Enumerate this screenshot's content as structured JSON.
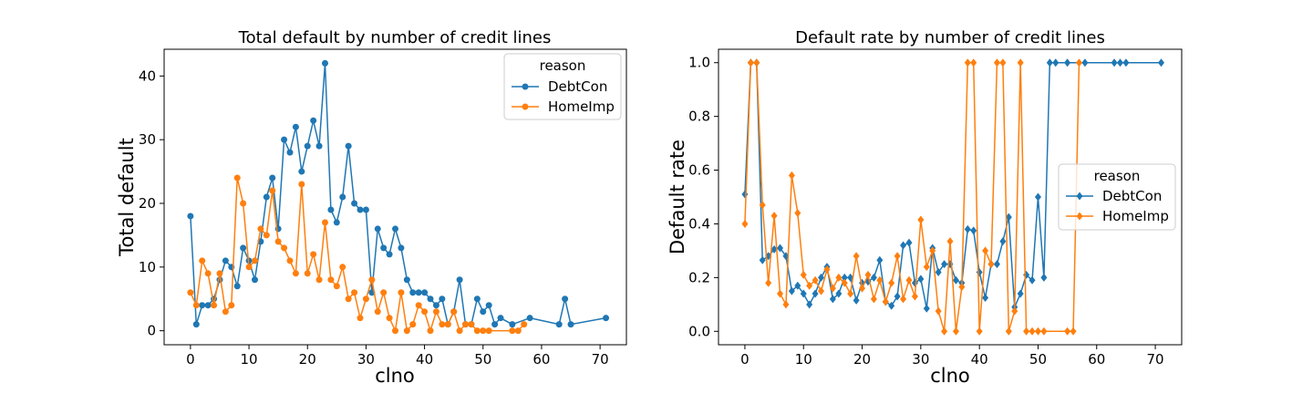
{
  "chart_data": [
    {
      "type": "line",
      "title": "Total default by number of credit lines",
      "xlabel": "clno",
      "ylabel": "Total default",
      "xlim": [
        -4.5,
        74.5
      ],
      "ylim": [
        -2.2,
        44.2
      ],
      "xticks": [
        0,
        10,
        20,
        30,
        40,
        50,
        60,
        70
      ],
      "yticks": [
        0,
        10,
        20,
        30,
        40
      ],
      "grid": false,
      "legend": {
        "title": "reason",
        "placement": "top-right"
      },
      "series": [
        {
          "name": "DebtCon",
          "color": "#1f77b4",
          "marker": "circle",
          "x": [
            0,
            1,
            2,
            3,
            4,
            5,
            6,
            7,
            8,
            9,
            10,
            11,
            12,
            13,
            14,
            15,
            16,
            17,
            18,
            19,
            20,
            21,
            22,
            23,
            24,
            25,
            26,
            27,
            28,
            29,
            30,
            31,
            32,
            33,
            34,
            35,
            36,
            37,
            38,
            39,
            40,
            41,
            42,
            43,
            44,
            45,
            46,
            47,
            48,
            49,
            50,
            51,
            52,
            53,
            55,
            58,
            63,
            64,
            65,
            71
          ],
          "y": [
            18,
            1,
            4,
            4,
            5,
            8,
            11,
            10,
            7,
            13,
            11,
            8,
            14,
            21,
            24,
            16,
            30,
            28,
            32,
            25,
            29,
            33,
            29,
            42,
            19,
            17,
            21,
            29,
            20,
            19,
            19,
            6,
            16,
            13,
            12,
            16,
            13,
            8,
            6,
            6,
            6,
            5,
            4,
            5,
            1,
            3,
            8,
            1,
            1,
            5,
            3,
            4,
            1,
            2,
            1,
            2,
            1,
            5,
            1,
            2
          ]
        },
        {
          "name": "HomeImp",
          "color": "#ff7f0e",
          "marker": "circle",
          "x": [
            0,
            1,
            2,
            3,
            4,
            5,
            6,
            7,
            8,
            9,
            10,
            11,
            12,
            13,
            14,
            15,
            16,
            17,
            18,
            19,
            20,
            21,
            22,
            23,
            24,
            25,
            26,
            27,
            28,
            29,
            30,
            31,
            32,
            33,
            34,
            35,
            36,
            37,
            38,
            39,
            40,
            41,
            42,
            43,
            44,
            45,
            46,
            47,
            48,
            49,
            50,
            51,
            55,
            56,
            57
          ],
          "y": [
            6,
            4,
            11,
            9,
            4,
            9,
            3,
            4,
            24,
            20,
            10,
            11,
            16,
            15,
            22,
            14,
            13,
            11,
            9,
            23,
            9,
            12,
            8,
            17,
            8,
            7,
            10,
            5,
            6,
            2,
            5,
            8,
            3,
            6,
            2,
            0,
            6,
            0,
            1,
            4,
            3,
            0,
            3,
            1,
            1,
            3,
            0,
            1,
            1,
            0,
            0,
            0,
            0,
            0,
            1
          ]
        }
      ]
    },
    {
      "type": "line",
      "title": "Default rate by number of credit lines",
      "xlabel": "clno",
      "ylabel": "Default rate",
      "xlim": [
        -4.5,
        74.5
      ],
      "ylim": [
        -0.05,
        1.05
      ],
      "xticks": [
        0,
        10,
        20,
        30,
        40,
        50,
        60,
        70
      ],
      "yticks": [
        0.0,
        0.2,
        0.4,
        0.6,
        0.8,
        1.0
      ],
      "grid": false,
      "legend": {
        "title": "reason",
        "placement": "center-right"
      },
      "series": [
        {
          "name": "DebtCon",
          "color": "#1f77b4",
          "marker": "diamond",
          "x": [
            0,
            1,
            2,
            3,
            4,
            5,
            6,
            7,
            8,
            9,
            10,
            11,
            12,
            13,
            14,
            15,
            16,
            17,
            18,
            19,
            20,
            21,
            22,
            23,
            24,
            25,
            26,
            27,
            28,
            29,
            30,
            31,
            32,
            33,
            34,
            35,
            36,
            37,
            38,
            39,
            40,
            41,
            42,
            43,
            44,
            45,
            46,
            47,
            48,
            49,
            50,
            51,
            52,
            53,
            55,
            58,
            63,
            64,
            65,
            71
          ],
          "y": [
            0.51,
            1.0,
            1.0,
            0.265,
            0.28,
            0.305,
            0.31,
            0.28,
            0.15,
            0.17,
            0.14,
            0.1,
            0.14,
            0.2,
            0.24,
            0.12,
            0.14,
            0.2,
            0.2,
            0.115,
            0.18,
            0.185,
            0.2,
            0.265,
            0.11,
            0.095,
            0.13,
            0.32,
            0.33,
            0.18,
            0.195,
            0.085,
            0.31,
            0.22,
            0.25,
            0.25,
            0.19,
            0.18,
            0.38,
            0.375,
            0.22,
            0.125,
            0.25,
            0.25,
            0.335,
            0.425,
            0.09,
            0.14,
            0.21,
            0.19,
            0.5,
            0.2,
            1.0,
            1.0,
            1.0,
            1.0,
            1.0,
            1.0,
            1.0,
            1.0
          ]
        },
        {
          "name": "HomeImp",
          "color": "#ff7f0e",
          "marker": "diamond",
          "x": [
            0,
            1,
            2,
            3,
            4,
            5,
            6,
            7,
            8,
            9,
            10,
            11,
            12,
            13,
            14,
            15,
            16,
            17,
            18,
            19,
            20,
            21,
            22,
            23,
            24,
            25,
            26,
            27,
            28,
            29,
            30,
            31,
            32,
            33,
            34,
            35,
            36,
            37,
            38,
            39,
            40,
            41,
            42,
            43,
            44,
            45,
            46,
            47,
            48,
            49,
            50,
            51,
            55,
            56,
            57
          ],
          "y": [
            0.4,
            1.0,
            1.0,
            0.47,
            0.18,
            0.43,
            0.14,
            0.1,
            0.58,
            0.44,
            0.21,
            0.17,
            0.19,
            0.15,
            0.23,
            0.16,
            0.2,
            0.18,
            0.14,
            0.28,
            0.16,
            0.21,
            0.12,
            0.19,
            0.11,
            0.18,
            0.28,
            0.12,
            0.19,
            0.13,
            0.415,
            0.24,
            0.3,
            0.075,
            0.0,
            0.335,
            0.0,
            0.165,
            1.0,
            1.0,
            0.0,
            0.3,
            0.25,
            1.0,
            1.0,
            0.0,
            0.075,
            1.0,
            0.0,
            0.0,
            0.0,
            0.0,
            0.0,
            0.0,
            1.0
          ]
        }
      ]
    }
  ]
}
